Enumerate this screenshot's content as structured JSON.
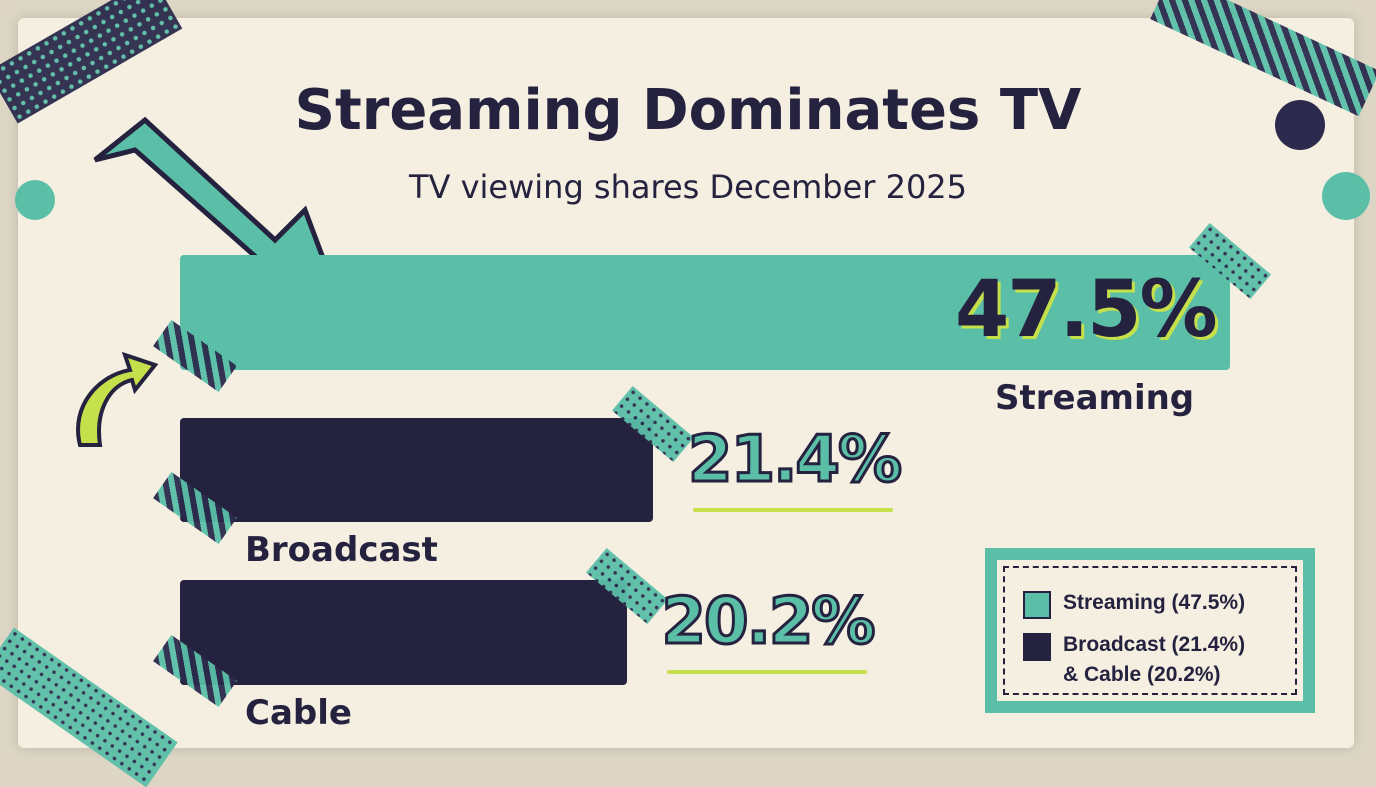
{
  "chart_data": {
    "type": "bar",
    "orientation": "horizontal",
    "title": "Streaming Dominates TV",
    "subtitle": "TV viewing shares December 2025",
    "categories": [
      "Streaming",
      "Broadcast",
      "Cable"
    ],
    "values": [
      47.5,
      21.4,
      20.2
    ],
    "value_labels": [
      "47.5%",
      "21.4%",
      "20.2%"
    ],
    "unit": "%",
    "colors": [
      "#5bbfa8",
      "#25223f",
      "#25223f"
    ],
    "grid": false,
    "legend_position": "bottom-right",
    "legend": [
      {
        "label": "Streaming (47.5%)",
        "color": "#5bbfa8"
      },
      {
        "label": "Broadcast (21.4%)\n& Cable (20.2%)",
        "label_lines": [
          "Broadcast (21.4%)",
          "& Cable (20.2%)"
        ],
        "color": "#25223f"
      }
    ]
  },
  "colors": {
    "accent": "#c5e04a",
    "paper": "#f4efe1"
  }
}
